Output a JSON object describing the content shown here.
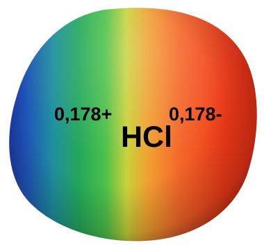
{
  "molecule": {
    "formula": "HCl",
    "partial_charge_h": "0,178+",
    "partial_charge_cl": "0,178-"
  },
  "colors": {
    "negative_end": "#f03a18",
    "positive_end": "#1a2a9a",
    "gradient_stops": [
      "#1a2a9a",
      "#1f6fc0",
      "#24a85a",
      "#3cbf4a",
      "#c9d23a",
      "#f0a030",
      "#f5672a",
      "#f03a18",
      "#e22e16"
    ]
  }
}
